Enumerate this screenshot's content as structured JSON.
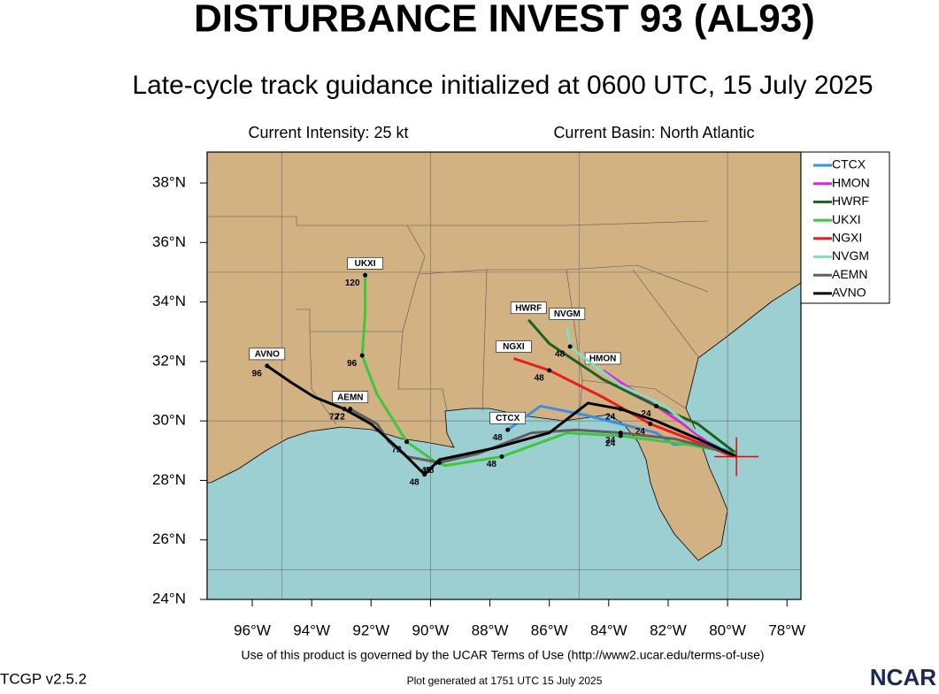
{
  "header": {
    "title": "DISTURBANCE INVEST 93 (AL93)",
    "subtitle": "Late-cycle track guidance initialized at 0600 UTC, 15 July 2025",
    "intensity": "Current Intensity: 25 kt",
    "basin": "Current Basin: North Atlantic"
  },
  "map": {
    "xlim": [
      -97.52,
      -77.53
    ],
    "ylim": [
      24,
      39.04
    ],
    "xticks": [
      {
        "value": -96,
        "label": "96°W"
      },
      {
        "value": -94,
        "label": "94°W"
      },
      {
        "value": -92,
        "label": "92°W"
      },
      {
        "value": -90,
        "label": "90°W"
      },
      {
        "value": -88,
        "label": "88°W"
      },
      {
        "value": -86,
        "label": "86°W"
      },
      {
        "value": -84,
        "label": "84°W"
      },
      {
        "value": -82,
        "label": "82°W"
      },
      {
        "value": -80,
        "label": "80°W"
      },
      {
        "value": -78,
        "label": "78°W"
      }
    ],
    "yticks": [
      {
        "value": 24,
        "label": "24°N"
      },
      {
        "value": 26,
        "label": "26°N"
      },
      {
        "value": 28,
        "label": "28°N"
      },
      {
        "value": 30,
        "label": "30°N"
      },
      {
        "value": 32,
        "label": "32°N"
      },
      {
        "value": 34,
        "label": "34°N"
      },
      {
        "value": 36,
        "label": "36°N"
      },
      {
        "value": 38,
        "label": "38°N"
      }
    ],
    "grid_lon": [
      -95,
      -90,
      -85,
      -80
    ],
    "grid_lat": [
      25,
      30,
      35
    ],
    "current_position": {
      "lon": -79.7,
      "lat": 28.8
    },
    "tracks": [
      {
        "name": "CTCX",
        "color": "#3a8fe0",
        "lon": [
          -87.4,
          -86.3,
          -84.8,
          -83.6,
          -82.4,
          -81.8,
          -80.7,
          -79.8
        ],
        "lat": [
          29.7,
          30.5,
          30.2,
          29.9,
          29.6,
          29.2,
          29.3,
          28.9
        ],
        "point_labels": [
          48,
          null,
          null,
          null,
          null,
          null,
          null,
          null
        ]
      },
      {
        "name": "HMON",
        "color": "#e020e0",
        "lon": [
          -84.2,
          -82.7,
          -81.5,
          -80.7,
          -79.8
        ],
        "lat": [
          31.7,
          30.7,
          29.9,
          29.3,
          28.8
        ],
        "point_labels": [
          null,
          null,
          null,
          null,
          null
        ]
      },
      {
        "name": "HWRF",
        "color": "#1f5f1f",
        "lon": [
          -86.7,
          -86.0,
          -84.2,
          -82.4,
          -81.0,
          -79.7
        ],
        "lat": [
          33.4,
          32.6,
          31.4,
          30.5,
          29.9,
          28.9
        ],
        "point_labels": [
          null,
          null,
          null,
          24,
          null,
          null
        ]
      },
      {
        "name": "UKXI",
        "color": "#3cc83c",
        "lon": [
          -92.2,
          -92.2,
          -92.3,
          -91.8,
          -90.8,
          -89.8,
          -89.5,
          -87.6,
          -85.4,
          -83.6,
          -81.3,
          -79.7
        ],
        "lat": [
          34.9,
          33.6,
          32.2,
          30.9,
          29.3,
          28.6,
          28.5,
          28.8,
          29.6,
          29.5,
          29.2,
          28.9
        ],
        "point_labels": [
          120,
          null,
          96,
          null,
          72,
          48,
          null,
          48,
          null,
          24,
          null,
          null
        ]
      },
      {
        "name": "NGXI",
        "color": "#e81c1c",
        "lon": [
          -87.2,
          -86.0,
          -84.2,
          -82.6,
          -81.3,
          -79.8
        ],
        "lat": [
          32.1,
          31.7,
          30.8,
          29.9,
          29.4,
          28.8
        ],
        "point_labels": [
          null,
          48,
          null,
          24,
          null,
          null
        ]
      },
      {
        "name": "NVGM",
        "color": "#80e0c0",
        "lon": [
          -85.4,
          -85.3,
          -84.8,
          -83.6,
          -82.1,
          -81.0,
          -80.1
        ],
        "lat": [
          33.2,
          32.5,
          32.1,
          31.2,
          30.5,
          29.6,
          29.1
        ],
        "point_labels": [
          null,
          48,
          null,
          null,
          null,
          null,
          null
        ]
      },
      {
        "name": "AEMN",
        "color": "#606060",
        "lon": [
          -92.7,
          -91.8,
          -91.4,
          -90.8,
          -89.7,
          -88.4,
          -86.6,
          -85.1,
          -83.6,
          -81.8,
          -79.8
        ],
        "lat": [
          30.4,
          29.9,
          29.3,
          28.8,
          28.6,
          28.9,
          29.6,
          29.7,
          29.6,
          29.4,
          28.9
        ],
        "point_labels": [
          72,
          null,
          null,
          null,
          48,
          null,
          null,
          null,
          24,
          null,
          null
        ]
      },
      {
        "name": "AVNO",
        "color": "#000000",
        "lon": [
          -95.5,
          -94.7,
          -93.9,
          -92.9,
          -92.0,
          -90.9,
          -90.2,
          -89.7,
          -87.8,
          -86.0,
          -84.7,
          -83.6,
          -82.4,
          -81.0,
          -79.7
        ],
        "lat": [
          31.85,
          31.3,
          30.8,
          30.4,
          29.9,
          28.9,
          28.2,
          28.7,
          29.1,
          29.6,
          30.6,
          30.4,
          30.0,
          29.4,
          28.8
        ],
        "point_labels": [
          96,
          null,
          null,
          72,
          null,
          null,
          48,
          null,
          null,
          null,
          null,
          24,
          null,
          null,
          null
        ]
      }
    ]
  },
  "footer": {
    "terms": "Use of this product is governed by the UCAR Terms of Use (http://www2.ucar.edu/terms-of-use)",
    "version": "TCGP v2.5.2",
    "generated": "Plot generated at 1751 UTC   15 July 2025",
    "logo": "NCAR"
  }
}
